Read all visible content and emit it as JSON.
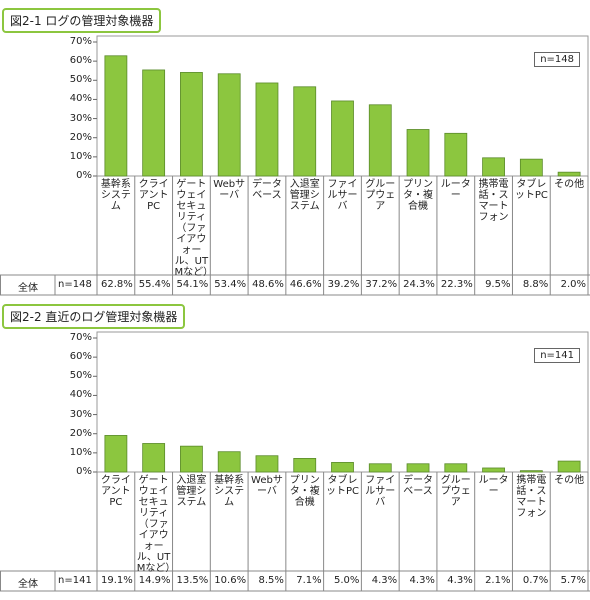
{
  "chart_data": [
    {
      "type": "bar",
      "title": "図2-1 ログの管理対象機器",
      "note": "n=148",
      "row_label": "全体",
      "color": "#8cc63f",
      "categories": [
        "基幹系システム",
        "クライアントPC",
        "ゲートウェイセキュリティ（ファイアウォール、UTMなど）",
        "Webサーバ",
        "データベース",
        "入退室管理システム",
        "ファイルサーバ",
        "グループウェア",
        "プリンタ・複合機",
        "ルーター",
        "携帯電話・スマートフォン",
        "タブレットPC",
        "その他"
      ],
      "values": [
        62.8,
        55.4,
        54.1,
        53.4,
        48.6,
        46.6,
        39.2,
        37.2,
        24.3,
        22.3,
        9.5,
        8.8,
        2.0
      ],
      "value_labels": [
        "62.8%",
        "55.4%",
        "54.1%",
        "53.4%",
        "48.6%",
        "46.6%",
        "39.2%",
        "37.2%",
        "24.3%",
        "22.3%",
        "9.5%",
        "8.8%",
        "2.0%"
      ],
      "ylim": [
        0,
        70
      ],
      "yticks": [
        {
          "value": 0,
          "label": "0%"
        },
        {
          "value": 10,
          "label": "10%"
        },
        {
          "value": 20,
          "label": "20%"
        },
        {
          "value": 30,
          "label": "30%"
        },
        {
          "value": 40,
          "label": "40%"
        },
        {
          "value": 50,
          "label": "50%"
        },
        {
          "value": 60,
          "label": "60%"
        },
        {
          "value": 70,
          "label": "70%"
        }
      ]
    },
    {
      "type": "bar",
      "title": "図2-2 直近のログ管理対象機器",
      "note": "n=141",
      "row_label": "全体",
      "color": "#8cc63f",
      "categories": [
        "クライアントPC",
        "ゲートウェイセキュリティ（ファイアウォール、UTMなど）",
        "入退室管理システム",
        "基幹系システム",
        "Webサーバ",
        "プリンタ・複合機",
        "タブレットPC",
        "ファイルサーバ",
        "データベース",
        "グループウェア",
        "ルーター",
        "携帯電話・スマートフォン",
        "その他"
      ],
      "values": [
        19.1,
        14.9,
        13.5,
        10.6,
        8.5,
        7.1,
        5.0,
        4.3,
        4.3,
        4.3,
        2.1,
        0.7,
        5.7
      ],
      "value_labels": [
        "19.1%",
        "14.9%",
        "13.5%",
        "10.6%",
        "8.5%",
        "7.1%",
        "5.0%",
        "4.3%",
        "4.3%",
        "4.3%",
        "2.1%",
        "0.7%",
        "5.7%"
      ],
      "ylim": [
        0,
        70
      ],
      "yticks": [
        {
          "value": 0,
          "label": "0%"
        },
        {
          "value": 10,
          "label": "10%"
        },
        {
          "value": 20,
          "label": "20%"
        },
        {
          "value": 30,
          "label": "30%"
        },
        {
          "value": 40,
          "label": "40%"
        },
        {
          "value": 50,
          "label": "50%"
        },
        {
          "value": 60,
          "label": "60%"
        },
        {
          "value": 70,
          "label": "70%"
        }
      ]
    }
  ]
}
